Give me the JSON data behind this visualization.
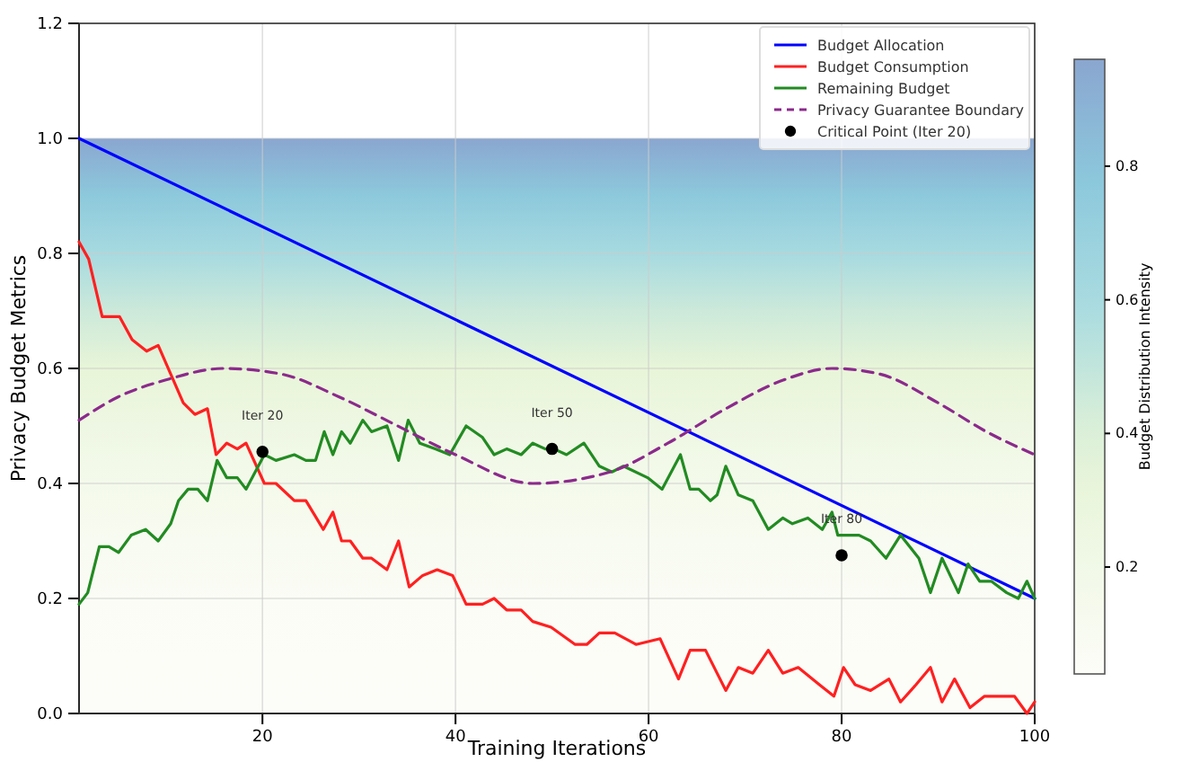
{
  "chart_data": {
    "type": "line",
    "xlabel": "Training Iterations",
    "ylabel": "Privacy Budget Metrics",
    "clabel": "Budget Distribution Intensity",
    "clim": [
      0.04,
      0.96
    ],
    "cticks": [
      0.2,
      0.4,
      0.6,
      0.8
    ],
    "xlim": [
      1,
      100
    ],
    "xticks": [
      20,
      40,
      60,
      80,
      100
    ],
    "ylim": [
      0,
      1.2
    ],
    "yticks": [
      {
        "value": 0,
        "label": "0.0"
      },
      {
        "value": 0.2,
        "label": "0.2"
      },
      {
        "value": 0.4,
        "label": "0.4"
      },
      {
        "value": 0.6,
        "label": "0.6"
      },
      {
        "value": 0.8,
        "label": "0.8"
      },
      {
        "value": 1,
        "label": "1.0"
      },
      {
        "value": 1.2,
        "label": "1.2"
      }
    ],
    "grid": true,
    "legend": "top right",
    "bands": [
      {
        "axis": "y",
        "from": 0,
        "to": 1
      }
    ],
    "series": [
      {
        "name": "Budget Allocation",
        "color": "#0000ff",
        "x": [
          1,
          100
        ],
        "values": [
          1.0,
          0.2
        ]
      },
      {
        "name": "Budget Consumption",
        "color": "#ff2020",
        "x": [
          1,
          2,
          3.4,
          5.2,
          6.5,
          8,
          9.2,
          10.5,
          11.8,
          13,
          14.3,
          15.2,
          16.3,
          17.4,
          18.3,
          20.2,
          21.4,
          23.3,
          24.5,
          26.3,
          27.3,
          28.2,
          29.1,
          30.4,
          31.3,
          32.9,
          34.1,
          35.2,
          36.6,
          38.1,
          39.7,
          41.1,
          42.8,
          44,
          45.3,
          46.8,
          48,
          49.9,
          52.4,
          53.6,
          54.9,
          56.5,
          58.7,
          61.2,
          63.1,
          64.3,
          65.9,
          68,
          69.3,
          70.8,
          72.4,
          73.9,
          75.5,
          77.7,
          79.2,
          80.2,
          81.4,
          83,
          84.9,
          86.1,
          87.7,
          89.2,
          90.4,
          91.7,
          93.3,
          94.8,
          97.9,
          99.2,
          100
        ],
        "values": [
          0.82,
          0.79,
          0.69,
          0.69,
          0.65,
          0.63,
          0.64,
          0.59,
          0.54,
          0.52,
          0.53,
          0.45,
          0.47,
          0.46,
          0.47,
          0.4,
          0.4,
          0.37,
          0.37,
          0.32,
          0.35,
          0.3,
          0.3,
          0.27,
          0.27,
          0.25,
          0.3,
          0.22,
          0.24,
          0.25,
          0.24,
          0.19,
          0.19,
          0.2,
          0.18,
          0.18,
          0.16,
          0.15,
          0.12,
          0.12,
          0.14,
          0.14,
          0.12,
          0.13,
          0.06,
          0.11,
          0.11,
          0.04,
          0.08,
          0.07,
          0.11,
          0.07,
          0.08,
          0.05,
          0.03,
          0.08,
          0.05,
          0.04,
          0.06,
          0.02,
          0.05,
          0.08,
          0.02,
          0.06,
          0.01,
          0.03,
          0.03,
          0.0,
          0.02
        ]
      },
      {
        "name": "Remaining Budget",
        "color": "#228b22",
        "x": [
          1,
          1.9,
          3.1,
          4.1,
          5.1,
          6.4,
          7.9,
          9.2,
          10.5,
          11.3,
          12.3,
          13.3,
          14.3,
          15.3,
          16.3,
          17.4,
          18.3,
          20.2,
          21.4,
          23.3,
          24.5,
          25.5,
          26.4,
          27.3,
          28.2,
          29.1,
          30.4,
          31.3,
          32.9,
          34.1,
          35.1,
          36.3,
          37.9,
          39.4,
          41.1,
          42.8,
          44,
          45.3,
          46.8,
          48,
          49.3,
          50.2,
          51.5,
          53.3,
          54.9,
          56.2,
          57.4,
          59.9,
          61.4,
          63.3,
          64.3,
          65.2,
          66.4,
          67.1,
          68,
          69.3,
          70.8,
          72.4,
          73.9,
          74.9,
          76.5,
          78,
          79,
          79.6,
          80.6,
          81.8,
          83,
          84.6,
          86.1,
          88,
          89.2,
          90.4,
          92.1,
          93.1,
          94.3,
          95.5,
          97.1,
          98.3,
          99.2,
          100
        ],
        "values": [
          0.19,
          0.21,
          0.29,
          0.29,
          0.28,
          0.31,
          0.32,
          0.3,
          0.33,
          0.37,
          0.39,
          0.39,
          0.37,
          0.44,
          0.41,
          0.41,
          0.39,
          0.45,
          0.44,
          0.45,
          0.44,
          0.44,
          0.49,
          0.45,
          0.49,
          0.47,
          0.51,
          0.49,
          0.5,
          0.44,
          0.51,
          0.47,
          0.46,
          0.45,
          0.5,
          0.48,
          0.45,
          0.46,
          0.45,
          0.47,
          0.46,
          0.46,
          0.45,
          0.47,
          0.43,
          0.42,
          0.43,
          0.41,
          0.39,
          0.45,
          0.39,
          0.39,
          0.37,
          0.38,
          0.43,
          0.38,
          0.37,
          0.32,
          0.34,
          0.33,
          0.34,
          0.32,
          0.35,
          0.31,
          0.31,
          0.31,
          0.3,
          0.27,
          0.31,
          0.27,
          0.21,
          0.27,
          0.21,
          0.26,
          0.23,
          0.23,
          0.21,
          0.2,
          0.23,
          0.2
        ]
      },
      {
        "name": "Privacy Guarantee Boundary",
        "color": "#8b2a8b",
        "line_style": "dashed",
        "x": [
          1,
          5,
          10,
          16,
          22,
          28,
          34,
          40,
          48,
          56,
          62,
          68,
          74,
          79,
          84,
          90,
          95,
          100
        ],
        "values": [
          0.51,
          0.55,
          0.58,
          0.6,
          0.59,
          0.55,
          0.5,
          0.45,
          0.4,
          0.42,
          0.47,
          0.53,
          0.58,
          0.6,
          0.59,
          0.54,
          0.49,
          0.45
        ]
      },
      {
        "name": "Critical Point (Iter 20)",
        "type": "scatter",
        "marker": "circle",
        "color": "#000000",
        "x": [
          20,
          50,
          80
        ],
        "values": [
          0.455,
          0.46,
          0.275
        ]
      }
    ],
    "annotations": [
      {
        "text": "Iter 20",
        "x": 20,
        "y": 0.455
      },
      {
        "text": "Iter 50",
        "x": 50,
        "y": 0.46
      },
      {
        "text": "Iter 80",
        "x": 80,
        "y": 0.275
      }
    ]
  }
}
